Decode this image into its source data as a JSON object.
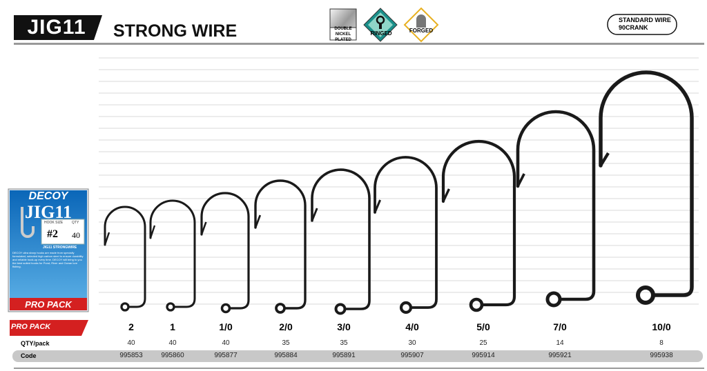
{
  "header": {
    "model": "JIG11",
    "title": "STRONG WIRE"
  },
  "badges": {
    "plating": "DOUBLE NICKEL PLATED",
    "ringed": "RINGED",
    "forged": "FORGED"
  },
  "wire": {
    "line1": "STANDARD WIRE",
    "line2": "90CRANK"
  },
  "package": {
    "brand": "DECOY",
    "model": "JIG11",
    "size_label": "HOOK SIZE",
    "qty_label": "QTY",
    "size": "#2",
    "qty": "40",
    "name": "JIG11 STRONGWIRE",
    "description": "DECOY ultra sharp hooks are made from specially formulated, selected high carbon steel to ensure durability and reliable hook-up every time. DECOY will bring to you the best suited hooks for Pond, River and Ocean lure fishing.",
    "banner": "PRO PACK"
  },
  "pro_pack": "PRO PACK",
  "table": {
    "sizes": [
      "2",
      "1",
      "1/0",
      "2/0",
      "3/0",
      "4/0",
      "5/0",
      "7/0",
      "10/0"
    ],
    "qty_label": "QTY/pack",
    "qty": [
      40,
      40,
      40,
      35,
      35,
      30,
      25,
      14,
      8
    ],
    "code_label": "Code",
    "codes": [
      "995853",
      "995860",
      "995877",
      "995884",
      "995891",
      "995907",
      "995914",
      "995921",
      "995938"
    ]
  }
}
